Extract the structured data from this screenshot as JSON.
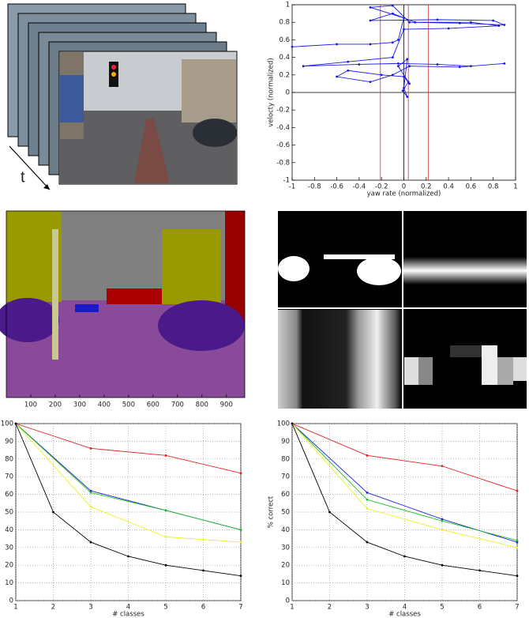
{
  "figure": {
    "stack_label": "t"
  },
  "chart_data": [
    {
      "type": "line",
      "xlabel": "yaw rate (normalized)",
      "ylabel": "velocty (normalized)",
      "xlim": [
        -1,
        1
      ],
      "ylim": [
        -1,
        1
      ],
      "xticks": [
        -1,
        -0.8,
        -0.6,
        -0.4,
        -0.2,
        0,
        0.2,
        0.4,
        0.6,
        0.8,
        1
      ],
      "yticks": [
        -1,
        -0.8,
        -0.6,
        -0.4,
        -0.2,
        0,
        0.2,
        0.4,
        0.6,
        0.8,
        1
      ],
      "grid": false,
      "zero_lines": true,
      "red_lines": [
        -0.21,
        0.04,
        0.22
      ],
      "red_color": "#e03030",
      "series": [
        {
          "color": "#1a1ae6",
          "x": [
            -1,
            -0.6,
            -0.3,
            -0.1,
            -0.05,
            0,
            -0.3,
            -0.1,
            0.05,
            0.5,
            0.9,
            0.8,
            0.3,
            -0.3,
            -0.1,
            0.1,
            0.6,
            0.85,
            0.4,
            0,
            -0.1,
            -0.5,
            -0.9,
            -0.4,
            -0.05,
            0.3,
            0.6,
            0.9,
            0.5,
            0.05,
            -0.1,
            -0.3,
            -0.6,
            -0.5,
            -0.2,
            0,
            0.05,
            -0.05,
            0.03,
            0,
            0.03,
            -0.01,
            0.04
          ],
          "values": [
            0.52,
            0.55,
            0.55,
            0.57,
            0.6,
            0.85,
            0.97,
            0.99,
            0.8,
            0.79,
            0.77,
            0.82,
            0.83,
            0.82,
            0.9,
            0.8,
            0.8,
            0.76,
            0.73,
            0.72,
            0.4,
            0.35,
            0.3,
            0.32,
            0.33,
            0.32,
            0.3,
            0.33,
            0.29,
            0.3,
            0.2,
            0.12,
            0.18,
            0.25,
            0.2,
            0.18,
            0.1,
            0.3,
            0.38,
            0.05,
            -0.05,
            0.02,
            0.12
          ]
        }
      ]
    },
    {
      "type": "image",
      "xlim": [
        0,
        975
      ],
      "xticks": [
        100,
        200,
        300,
        400,
        500,
        600,
        700,
        800,
        900
      ]
    },
    {
      "type": "line",
      "xlabel": "# classes",
      "xlim": [
        1,
        7
      ],
      "ylim": [
        0,
        100
      ],
      "xticks": [
        1,
        2,
        3,
        4,
        5,
        6,
        7
      ],
      "yticks": [
        0,
        10,
        20,
        30,
        40,
        50,
        60,
        70,
        80,
        90,
        100
      ],
      "grid": true,
      "series": [
        {
          "color": "#e82020",
          "x": [
            1,
            3,
            5,
            7
          ],
          "values": [
            100,
            86,
            82,
            72
          ]
        },
        {
          "color": "#2020e0",
          "x": [
            1,
            3,
            5,
            7
          ],
          "values": [
            100,
            62,
            51,
            40
          ]
        },
        {
          "color": "#20c020",
          "x": [
            1,
            3,
            5,
            7
          ],
          "values": [
            100,
            61,
            51,
            40
          ]
        },
        {
          "color": "#f0f020",
          "x": [
            1,
            3,
            5,
            7
          ],
          "values": [
            100,
            53,
            36,
            33
          ]
        },
        {
          "color": "#000000",
          "x": [
            1,
            2,
            3,
            4,
            5,
            6,
            7
          ],
          "values": [
            100,
            50,
            33,
            25,
            20,
            17,
            14
          ]
        }
      ]
    },
    {
      "type": "line",
      "xlabel": "# classes",
      "ylabel": "% correct",
      "xlim": [
        1,
        7
      ],
      "ylim": [
        0,
        100
      ],
      "xticks": [
        1,
        2,
        3,
        4,
        5,
        6,
        7
      ],
      "yticks": [
        0,
        10,
        20,
        30,
        40,
        50,
        60,
        70,
        80,
        90,
        100
      ],
      "grid": true,
      "series": [
        {
          "color": "#e82020",
          "x": [
            1,
            3,
            5,
            7
          ],
          "values": [
            100,
            82,
            76,
            62
          ]
        },
        {
          "color": "#2020e0",
          "x": [
            1,
            3,
            5,
            7
          ],
          "values": [
            100,
            61,
            46,
            33
          ]
        },
        {
          "color": "#20c020",
          "x": [
            1,
            3,
            5,
            7
          ],
          "values": [
            100,
            57,
            45,
            34
          ]
        },
        {
          "color": "#f0f020",
          "x": [
            1,
            3,
            5,
            7
          ],
          "values": [
            100,
            52,
            40,
            30
          ]
        },
        {
          "color": "#000000",
          "x": [
            1,
            2,
            3,
            4,
            5,
            6,
            7
          ],
          "values": [
            100,
            50,
            33,
            25,
            20,
            17,
            14
          ]
        }
      ]
    }
  ]
}
